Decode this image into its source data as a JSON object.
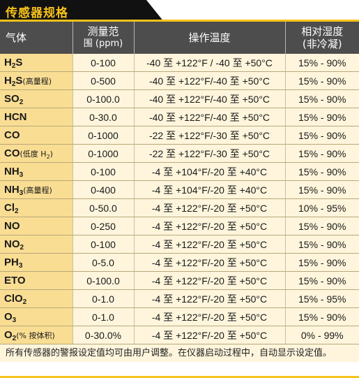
{
  "title": "传感器规格",
  "headers": {
    "gas": "气体",
    "range_line1": "测量范",
    "range_line2": "围 (ppm)",
    "temp": "操作温度",
    "humidity_line1": "相对湿度",
    "humidity_line2": "(非冷凝)"
  },
  "rows": [
    {
      "gas_main": "H",
      "gas_sub": "2",
      "gas_tail": "S",
      "note": "",
      "note_sub": "",
      "note_tail": "",
      "range": "0-100",
      "temp": "-40 至 +122°F / -40 至 +50°C",
      "humidity": "15% - 90%"
    },
    {
      "gas_main": "H",
      "gas_sub": "2",
      "gas_tail": "S",
      "note": "(高量程)",
      "note_sub": "",
      "note_tail": "",
      "range": "0-500",
      "temp": "-40 至 +122°F/-40 至 +50°C",
      "humidity": "15% - 90%"
    },
    {
      "gas_main": "SO",
      "gas_sub": "2",
      "gas_tail": "",
      "note": "",
      "note_sub": "",
      "note_tail": "",
      "range": "0-100.0",
      "temp": "-40 至 +122°F/-40 至 +50°C",
      "humidity": "15% - 90%"
    },
    {
      "gas_main": "HCN",
      "gas_sub": "",
      "gas_tail": "",
      "note": "",
      "note_sub": "",
      "note_tail": "",
      "range": "0-30.0",
      "temp": "-40 至 +122°F/-40 至 +50°C",
      "humidity": "15% - 90%"
    },
    {
      "gas_main": "CO",
      "gas_sub": "",
      "gas_tail": "",
      "note": "",
      "note_sub": "",
      "note_tail": "",
      "range": "0-1000",
      "temp": "-22 至 +122°F/-30 至 +50°C",
      "humidity": "15% - 90%"
    },
    {
      "gas_main": "CO",
      "gas_sub": "",
      "gas_tail": "",
      "note": "(低度 H",
      "note_sub": "2",
      "note_tail": ")",
      "range": "0-1000",
      "temp": "-22 至 +122°F/-30 至 +50°C",
      "humidity": "15% - 90%"
    },
    {
      "gas_main": "NH",
      "gas_sub": "3",
      "gas_tail": "",
      "note": "",
      "note_sub": "",
      "note_tail": "",
      "range": "0-100",
      "temp": "-4 至 +104°F/-20 至 +40°C",
      "humidity": "15% - 90%"
    },
    {
      "gas_main": "NH",
      "gas_sub": "3",
      "gas_tail": "",
      "note": "(高量程)",
      "note_sub": "",
      "note_tail": "",
      "range": "0-400",
      "temp": "-4 至 +104°F/-20 至 +40°C",
      "humidity": "15% - 90%"
    },
    {
      "gas_main": "Cl",
      "gas_sub": "2",
      "gas_tail": "",
      "note": "",
      "note_sub": "",
      "note_tail": "",
      "range": "0-50.0",
      "temp": "-4 至 +122°F/-20 至 +50°C",
      "humidity": "10% - 95%"
    },
    {
      "gas_main": "NO",
      "gas_sub": "",
      "gas_tail": "",
      "note": "",
      "note_sub": "",
      "note_tail": "",
      "range": "0-250",
      "temp": "-4 至 +122°F/-20 至 +50°C",
      "humidity": "15% - 90%"
    },
    {
      "gas_main": "NO",
      "gas_sub": "2",
      "gas_tail": "",
      "note": "",
      "note_sub": "",
      "note_tail": "",
      "range": "0-100",
      "temp": "-4 至 +122°F/-20 至 +50°C",
      "humidity": "15% - 90%"
    },
    {
      "gas_main": "PH",
      "gas_sub": "3",
      "gas_tail": "",
      "note": "",
      "note_sub": "",
      "note_tail": "",
      "range": "0-5.0",
      "temp": "-4 至 +122°F/-20 至 +50°C",
      "humidity": "15% - 90%"
    },
    {
      "gas_main": "ETO",
      "gas_sub": "",
      "gas_tail": "",
      "note": "",
      "note_sub": "",
      "note_tail": "",
      "range": "0-100.0",
      "temp": "-4 至 +122°F/-20 至 +50°C",
      "humidity": "15% - 90%"
    },
    {
      "gas_main": "ClO",
      "gas_sub": "2",
      "gas_tail": "",
      "note": "",
      "note_sub": "",
      "note_tail": "",
      "range": "0-1.0",
      "temp": "-4 至 +122°F/-20 至 +50°C",
      "humidity": "15% - 95%"
    },
    {
      "gas_main": "O",
      "gas_sub": "3",
      "gas_tail": "",
      "note": "",
      "note_sub": "",
      "note_tail": "",
      "range": "0-1.0",
      "temp": "-4 至 +122°F/-20 至 +50°C",
      "humidity": "15% - 90%"
    },
    {
      "gas_main": "O",
      "gas_sub": "2",
      "gas_tail": "",
      "note": "(% 按体积)",
      "note_sub": "",
      "note_tail": "",
      "range": "0-30.0%",
      "temp": "-4 至 +122°F/-20 至 +50°C",
      "humidity": "0% - 99%"
    }
  ],
  "footnote": "所有传感器的警报设定值均可由用户调整。在仪器启动过程中，自动显示设定值。",
  "colors": {
    "accent": "#f7c21a",
    "header": "#4d4d4d",
    "gas_cell": "#f9dd93",
    "row": "#fef5dc"
  }
}
